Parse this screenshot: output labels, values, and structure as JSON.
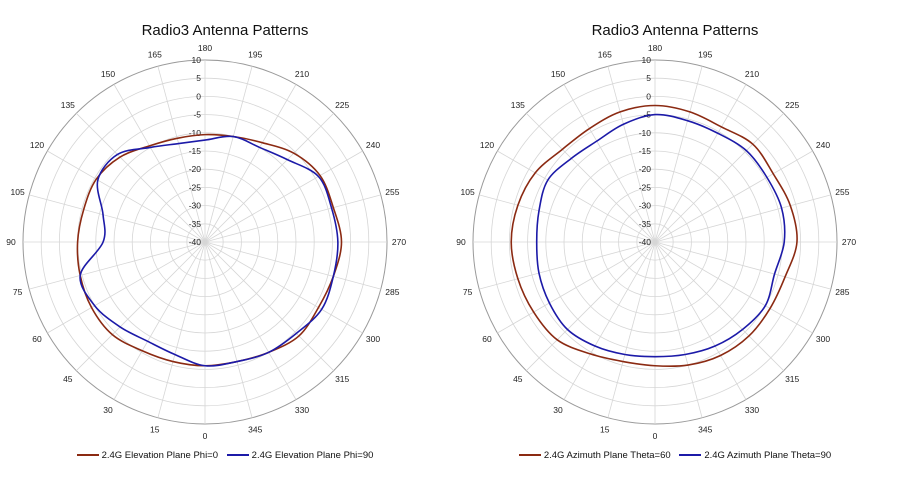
{
  "chart_data": [
    {
      "type": "line",
      "subtype": "polar",
      "title": "Radio3 Antenna Patterns",
      "radial_range": [
        -40,
        10
      ],
      "radial_ticks": [
        -40,
        -35,
        -30,
        -25,
        -20,
        -15,
        -10,
        -5,
        0,
        5,
        10
      ],
      "angle_ticks": [
        0,
        15,
        30,
        45,
        60,
        75,
        90,
        105,
        120,
        135,
        150,
        165,
        180,
        195,
        210,
        225,
        240,
        255,
        270,
        285,
        300,
        315,
        330,
        345
      ],
      "angle_zero": "bottom",
      "angle_direction": "clockwise",
      "grid": true,
      "legend_position": "bottom",
      "series": [
        {
          "name": "2.4G Elevation Plane Phi=0",
          "color": "#8b2a12",
          "angles": [
            0,
            15,
            30,
            45,
            60,
            75,
            90,
            105,
            120,
            135,
            150,
            165,
            180,
            195,
            210,
            225,
            240,
            255,
            270,
            285,
            300,
            315,
            330,
            345
          ],
          "values": [
            -6,
            -6,
            -5.5,
            -4,
            -4,
            -4.5,
            -5,
            -5.5,
            -5.5,
            -7,
            -9.5,
            -10.5,
            -10.5,
            -10,
            -8.5,
            -5.5,
            -3.5,
            -3.5,
            -2.5,
            -3.5,
            -4,
            -3.5,
            -5,
            -6
          ]
        },
        {
          "name": "2.4G Elevation Plane Phi=90",
          "color": "#1c1aa8",
          "angles": [
            0,
            15,
            30,
            45,
            60,
            75,
            90,
            105,
            120,
            135,
            150,
            165,
            180,
            195,
            210,
            225,
            240,
            255,
            270,
            285,
            300,
            315,
            330,
            345
          ],
          "values": [
            -6,
            -8,
            -8.5,
            -7,
            -5,
            -4.5,
            -12,
            -11,
            -6,
            -6,
            -10,
            -12,
            -12,
            -10,
            -10,
            -8,
            -4,
            -4,
            -3.5,
            -3.5,
            -3,
            -4.5,
            -5,
            -6
          ]
        }
      ]
    },
    {
      "type": "line",
      "subtype": "polar",
      "title": "Radio3 Antenna Patterns",
      "radial_range": [
        -40,
        10
      ],
      "radial_ticks": [
        -40,
        -35,
        -30,
        -25,
        -20,
        -15,
        -10,
        -5,
        0,
        5,
        10
      ],
      "angle_ticks": [
        0,
        15,
        30,
        45,
        60,
        75,
        90,
        105,
        120,
        135,
        150,
        165,
        180,
        195,
        210,
        225,
        240,
        255,
        270,
        285,
        300,
        315,
        330,
        345
      ],
      "angle_zero": "bottom",
      "angle_direction": "clockwise",
      "grid": true,
      "legend_position": "bottom",
      "series": [
        {
          "name": "2.4G Azimuth Plane Theta=60",
          "color": "#8b2a12",
          "angles": [
            0,
            15,
            30,
            45,
            60,
            75,
            90,
            105,
            120,
            135,
            150,
            165,
            180,
            195,
            210,
            225,
            240,
            255,
            270,
            285,
            300,
            315,
            330,
            345
          ],
          "values": [
            -6,
            -6,
            -4.5,
            -2,
            -1.5,
            -1,
            -0.5,
            -1,
            -2,
            -4,
            -4,
            -3,
            -2.5,
            -3,
            -3.5,
            -2,
            -2.5,
            -1.5,
            -1,
            -3,
            -3.5,
            -3.5,
            -4,
            -5
          ]
        },
        {
          "name": "2.4G Azimuth Plane Theta=90",
          "color": "#1c1aa8",
          "angles": [
            0,
            15,
            30,
            45,
            60,
            75,
            90,
            105,
            120,
            135,
            150,
            165,
            180,
            195,
            210,
            225,
            240,
            255,
            270,
            285,
            300,
            315,
            330,
            345
          ],
          "values": [
            -8.5,
            -8,
            -7,
            -6,
            -6.5,
            -7,
            -7.5,
            -7,
            -6,
            -7.5,
            -8,
            -6.5,
            -5,
            -5.5,
            -5.5,
            -4.5,
            -4.5,
            -4,
            -4.5,
            -6,
            -5,
            -6,
            -7,
            -8
          ]
        }
      ]
    }
  ]
}
